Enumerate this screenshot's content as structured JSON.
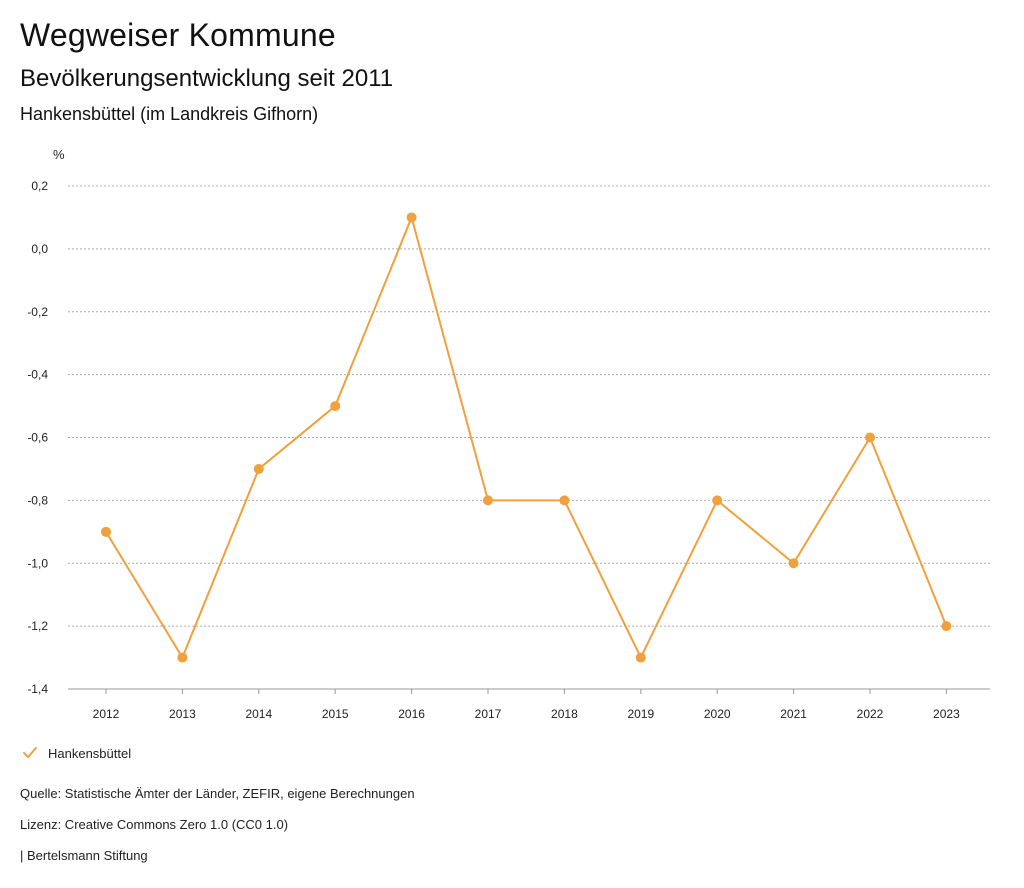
{
  "header": {
    "title": "Wegweiser Kommune",
    "subtitle": "Bevölkerungsentwicklung seit 2011",
    "region": "Hankensbüttel (im Landkreis Gifhorn)"
  },
  "chart_data": {
    "type": "line",
    "ylabel": "%",
    "categories": [
      "2012",
      "2013",
      "2014",
      "2015",
      "2016",
      "2017",
      "2018",
      "2019",
      "2020",
      "2021",
      "2022",
      "2023"
    ],
    "series": [
      {
        "name": "Hankensbüttel",
        "color": "#F0A03C",
        "values": [
          -0.9,
          -1.3,
          -0.7,
          -0.5,
          0.1,
          -0.8,
          -0.8,
          -1.3,
          -0.8,
          -1.0,
          -0.6,
          -1.2
        ]
      }
    ],
    "ylim": [
      -1.4,
      0.2
    ],
    "yticks": [
      0.2,
      0.0,
      -0.2,
      -0.4,
      -0.6,
      -0.8,
      -1.0,
      -1.2,
      -1.4
    ],
    "ytick_labels": [
      "0,2",
      "0,0",
      "-0,2",
      "-0,4",
      "-0,6",
      "-0,8",
      "-1,0",
      "-1,2",
      "-1,4"
    ],
    "grid": true
  },
  "legend": {
    "label": "Hankensbüttel",
    "icon": "check-icon"
  },
  "footer": {
    "source": "Quelle: Statistische Ämter der Länder, ZEFIR, eigene Berechnungen",
    "license": "Lizenz: Creative Commons Zero 1.0 (CC0 1.0)",
    "publisher": "| Bertelsmann Stiftung"
  }
}
